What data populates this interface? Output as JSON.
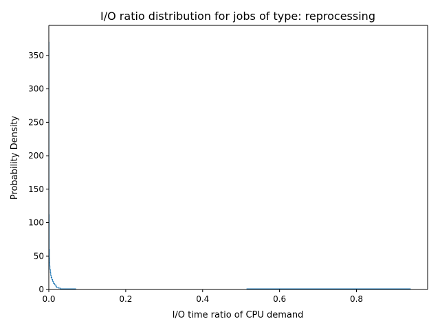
{
  "chart_data": {
    "type": "step",
    "title": "I/O ratio distribution for jobs of type: reprocessing",
    "xlabel": "I/O time ratio of CPU demand",
    "ylabel": "Probability Density",
    "xlim": [
      0.0,
      0.985
    ],
    "ylim": [
      0,
      395
    ],
    "x_ticks": [
      0.0,
      0.2,
      0.4,
      0.6,
      0.8
    ],
    "x_tick_labels": [
      "0.0",
      "0.2",
      "0.4",
      "0.6",
      "0.8"
    ],
    "y_ticks": [
      0,
      50,
      100,
      150,
      200,
      250,
      300,
      350
    ],
    "y_tick_labels": [
      "0",
      "50",
      "100",
      "150",
      "200",
      "250",
      "300",
      "350"
    ],
    "grid": false,
    "legend": "none",
    "series_color": "#1f77b4",
    "series": [
      {
        "x": [
          0.0,
          0.0005,
          0.001,
          0.0015,
          0.002,
          0.0025,
          0.003,
          0.004,
          0.005,
          0.006,
          0.008,
          0.01,
          0.012,
          0.015,
          0.018,
          0.02,
          0.025,
          0.03,
          0.035,
          0.045,
          0.055,
          0.065,
          0.07,
          0.515,
          0.6,
          0.7,
          0.8,
          0.94
        ],
        "y": [
          370,
          112,
          60,
          47,
          40,
          35,
          30,
          25,
          21,
          18,
          15,
          12,
          9,
          7,
          5,
          3,
          2,
          1,
          1,
          1,
          1,
          1,
          0,
          1,
          1,
          1,
          1,
          0
        ]
      }
    ]
  }
}
